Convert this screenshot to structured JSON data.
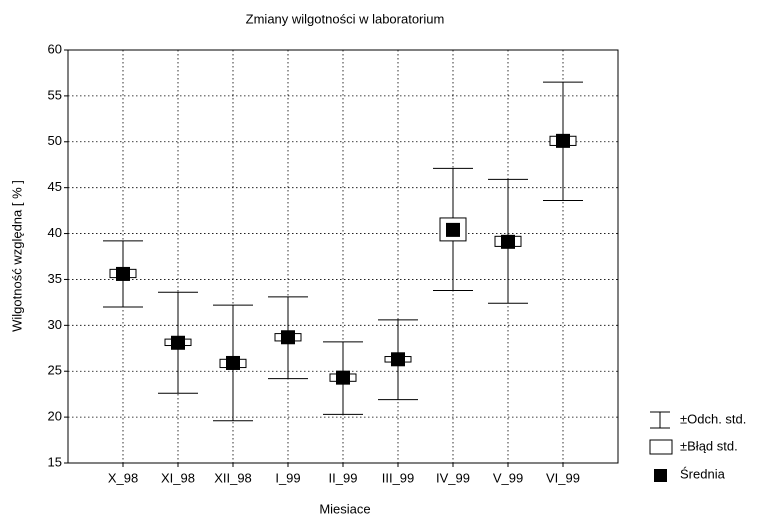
{
  "chart_data": {
    "type": "box",
    "title": "Zmiany wilgotności w laboratorium",
    "x_label": "Miesiace",
    "y_label": "Wilgotność względna  [ % ]",
    "categories": [
      "X_98",
      "XI_98",
      "XII_98",
      "I_99",
      "II_99",
      "III_99",
      "IV_99",
      "V_99",
      "VI_99"
    ],
    "mean": [
      35.6,
      28.1,
      25.9,
      28.7,
      24.3,
      26.3,
      40.4,
      39.1,
      50.1
    ],
    "box_low": [
      35.2,
      27.8,
      25.4,
      28.3,
      23.9,
      26.0,
      39.2,
      38.6,
      49.6
    ],
    "box_high": [
      36.1,
      28.5,
      26.3,
      29.1,
      24.7,
      26.6,
      41.7,
      39.7,
      50.6
    ],
    "whisker_low": [
      32.0,
      22.6,
      19.6,
      24.2,
      20.3,
      21.9,
      33.8,
      32.4,
      43.6
    ],
    "whisker_high": [
      39.2,
      33.6,
      32.2,
      33.1,
      28.2,
      30.6,
      47.1,
      45.9,
      56.5
    ],
    "legend": [
      "±Odch. std.",
      "±Błąd std.",
      "Średnia"
    ],
    "ylim": [
      15,
      60
    ],
    "yticks": [
      15,
      20,
      25,
      30,
      35,
      40,
      45,
      50,
      55,
      60
    ],
    "grid": true
  }
}
